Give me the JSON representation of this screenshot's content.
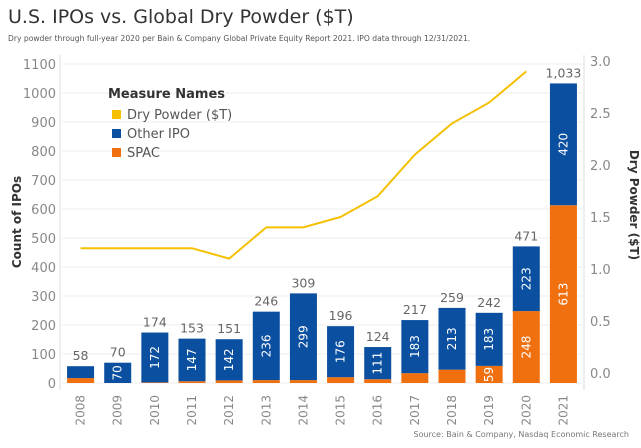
{
  "chart_data": {
    "type": "bar",
    "title": "U.S. IPOs vs. Global Dry Powder ($T)",
    "subtitle": "Dry powder through full-year 2020 per Bain & Company Global Private Equity Report 2021. IPO data through 12/31/2021.",
    "source": "Source: Bain & Company, Nasdaq Economic Research",
    "ylabel": "Count of IPOs",
    "y2label": "Dry Powder ($T)",
    "ylim": [
      0,
      1100
    ],
    "y2lim": [
      0,
      3.0
    ],
    "yticks": [
      "0",
      "100",
      "200",
      "300",
      "400",
      "500",
      "600",
      "700",
      "800",
      "900",
      "1000",
      "1100"
    ],
    "y2ticks": [
      "0.0",
      "0.5",
      "1.0",
      "1.5",
      "2.0",
      "2.5",
      "3.0"
    ],
    "legend_title": "Measure Names",
    "legend_placement": "top-left",
    "categories": [
      "2008",
      "2009",
      "2010",
      "2011",
      "2012",
      "2013",
      "2014",
      "2015",
      "2016",
      "2017",
      "2018",
      "2019",
      "2020",
      "2021"
    ],
    "totals": [
      "58",
      "70",
      "174",
      "153",
      "151",
      "246",
      "309",
      "196",
      "124",
      "217",
      "259",
      "242",
      "471",
      "1,033"
    ],
    "series": [
      {
        "name": "SPAC",
        "color": "#f07010",
        "values": [
          17,
          0,
          2,
          6,
          9,
          10,
          10,
          20,
          13,
          34,
          46,
          59,
          248,
          613
        ],
        "labels": [
          "",
          "",
          "",
          "",
          "",
          "",
          "",
          "",
          "",
          "",
          "",
          "59",
          "248",
          "613"
        ]
      },
      {
        "name": "Other IPO",
        "color": "#0a4fa0",
        "values": [
          41,
          70,
          172,
          147,
          142,
          236,
          299,
          176,
          111,
          183,
          213,
          183,
          223,
          420
        ],
        "labels": [
          "",
          "70",
          "172",
          "147",
          "142",
          "236",
          "299",
          "176",
          "111",
          "183",
          "213",
          "183",
          "223",
          "420"
        ]
      },
      {
        "name": "Dry Powder ($T)",
        "color": "#f5c000",
        "values": [
          1.2,
          1.2,
          1.2,
          1.2,
          1.1,
          1.4,
          1.4,
          1.5,
          1.7,
          2.1,
          2.4,
          2.6,
          2.9,
          null
        ]
      }
    ]
  }
}
